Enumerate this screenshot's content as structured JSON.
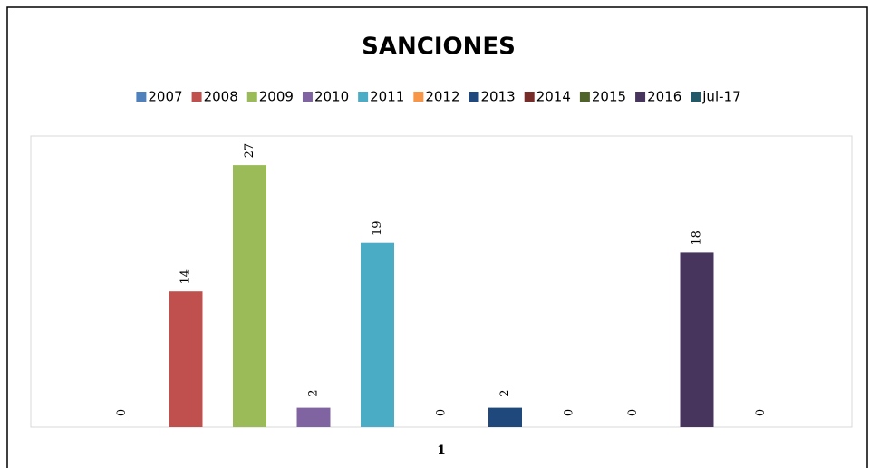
{
  "chart_data": {
    "type": "bar",
    "title": "SANCIONES",
    "categories": [
      "1"
    ],
    "series": [
      {
        "name": "2007",
        "color": "#4f81bd",
        "values": [
          0
        ]
      },
      {
        "name": "2008",
        "color": "#c0504d",
        "values": [
          14
        ]
      },
      {
        "name": "2009",
        "color": "#9bbb59",
        "values": [
          27
        ]
      },
      {
        "name": "2010",
        "color": "#8064a2",
        "values": [
          2
        ]
      },
      {
        "name": "2011",
        "color": "#4bacc6",
        "values": [
          19
        ]
      },
      {
        "name": "2012",
        "color": "#f79646",
        "values": [
          0
        ]
      },
      {
        "name": "2013",
        "color": "#1f497d",
        "values": [
          2
        ]
      },
      {
        "name": "2014",
        "color": "#772c2a",
        "values": [
          0
        ]
      },
      {
        "name": "2015",
        "color": "#4f6228",
        "values": [
          0
        ]
      },
      {
        "name": "2016",
        "color": "#47355e",
        "values": [
          18
        ]
      },
      {
        "name": "jul-17",
        "color": "#215968",
        "values": [
          0
        ]
      }
    ],
    "ylim": [
      0,
      30
    ],
    "legend": "top"
  }
}
